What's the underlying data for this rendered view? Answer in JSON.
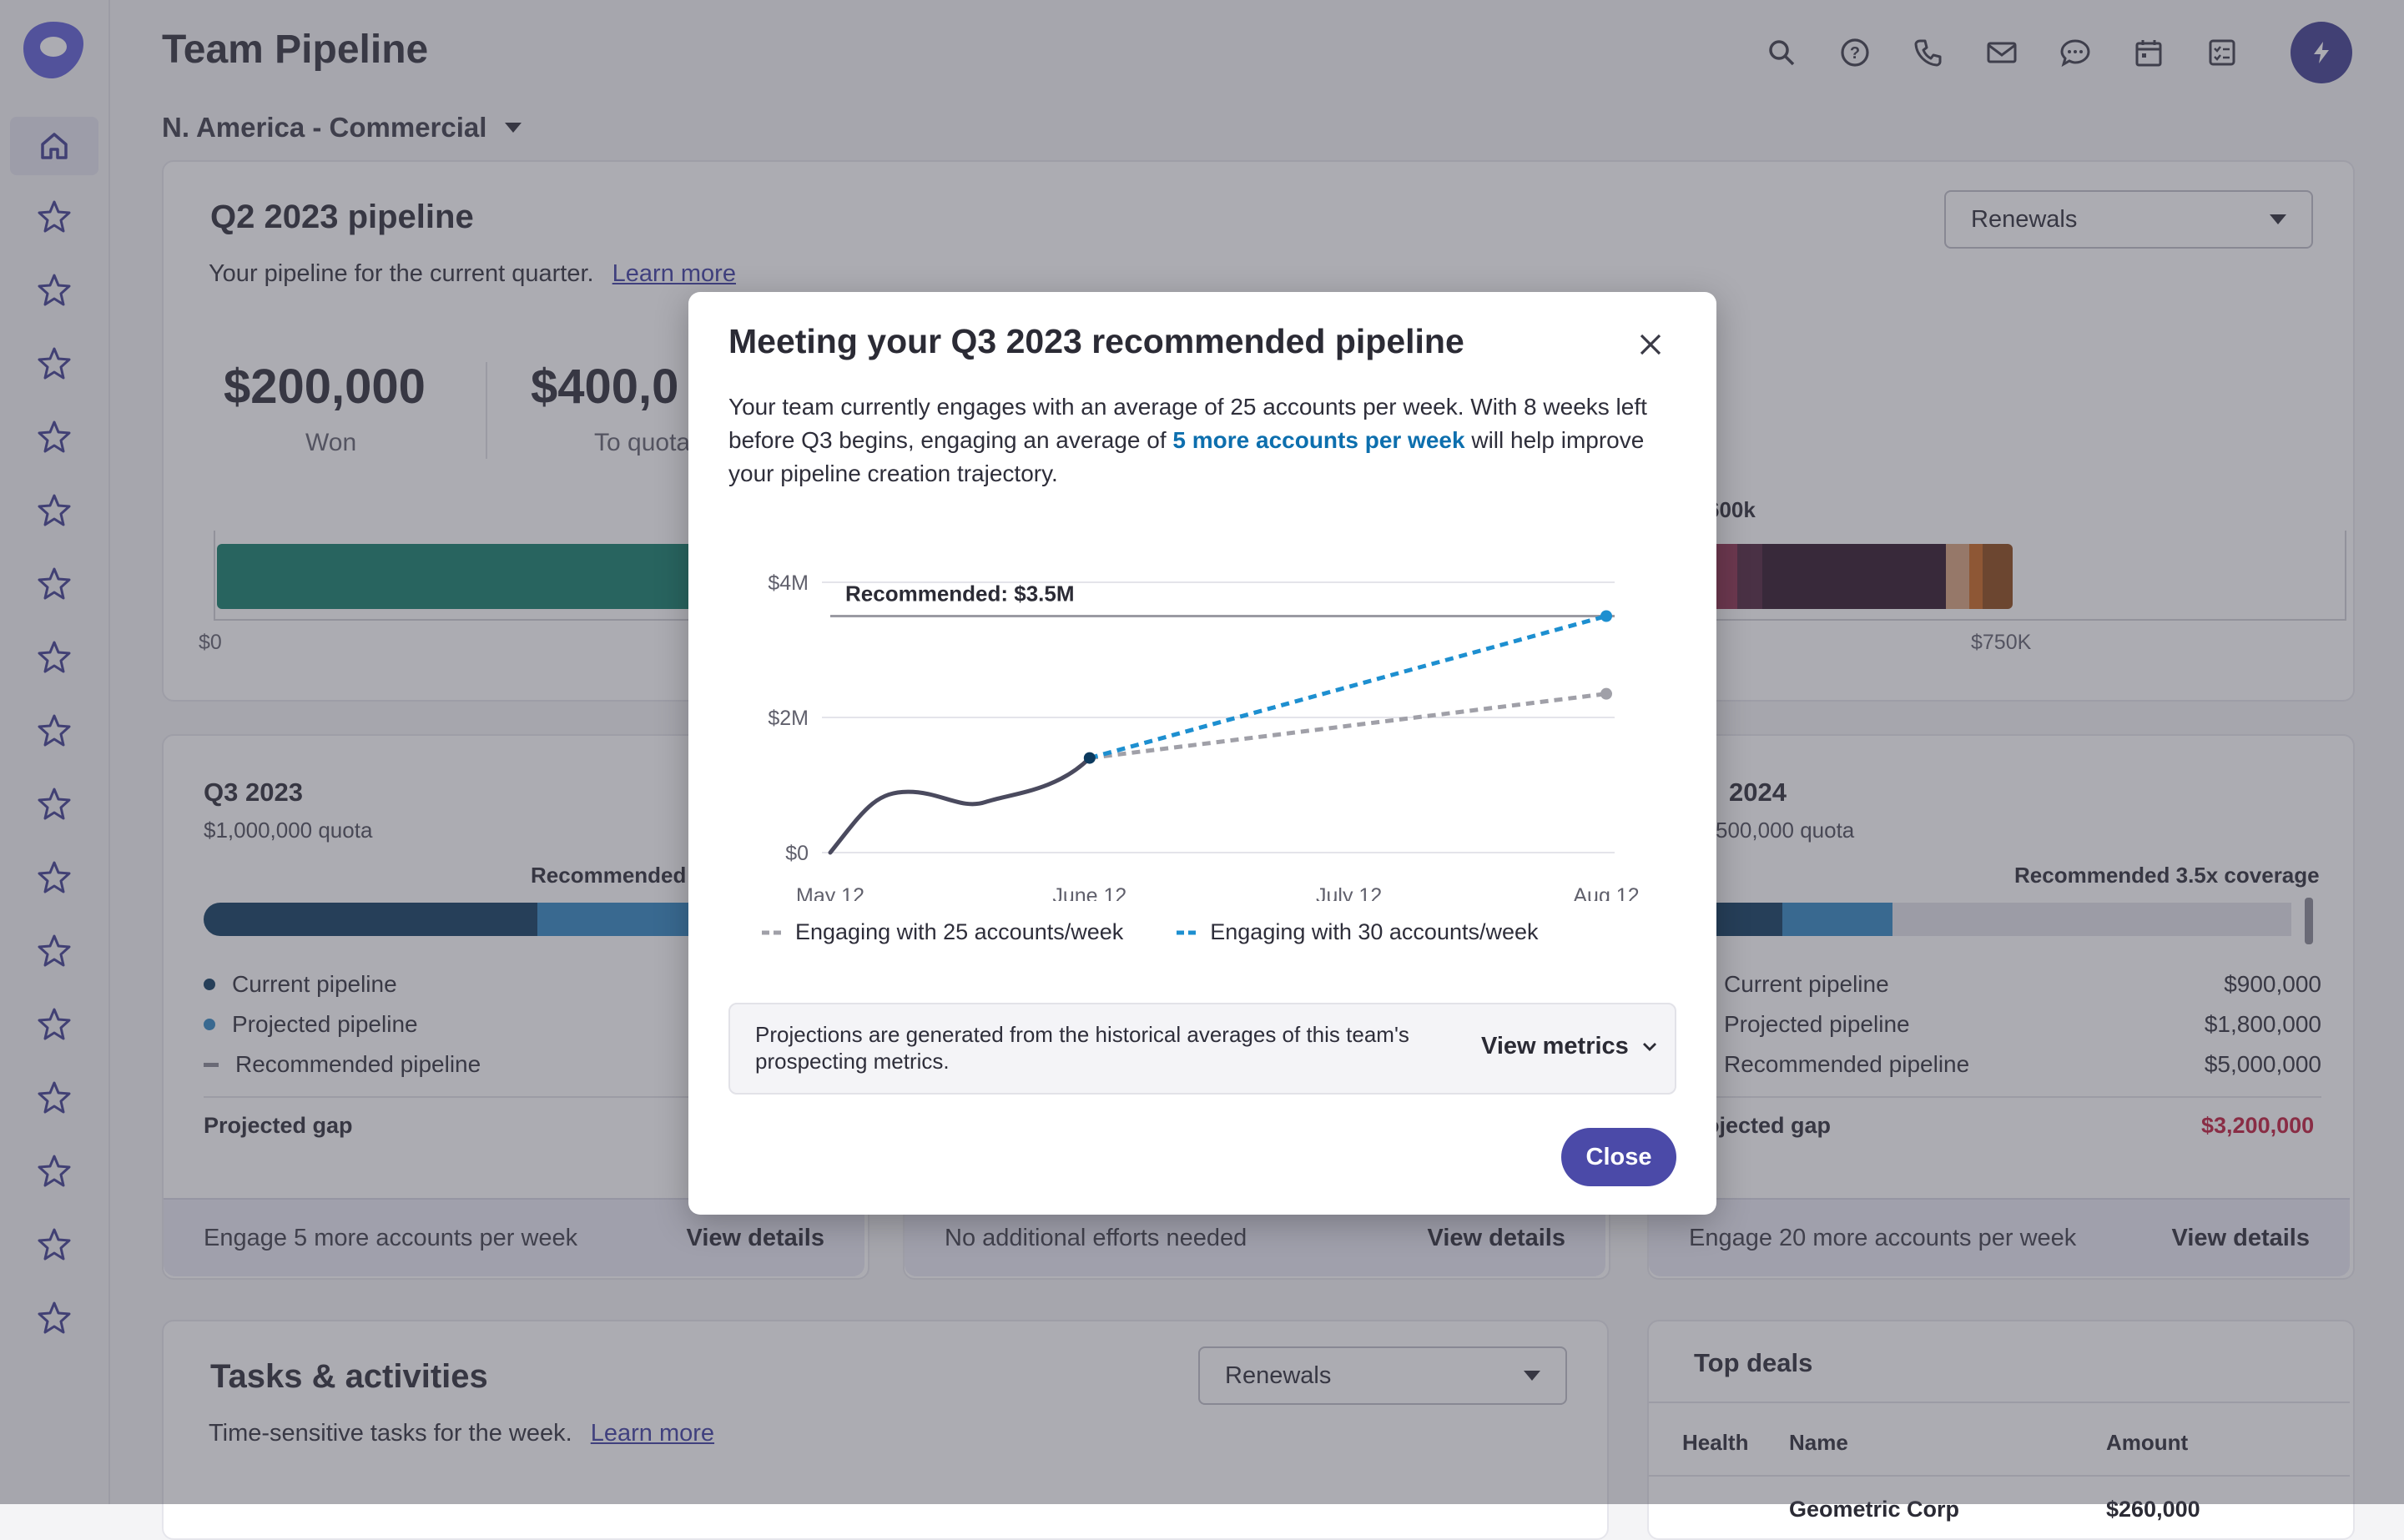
{
  "header": {
    "title": "Team Pipeline",
    "icons": [
      "search-icon",
      "help-icon",
      "phone-icon",
      "mail-icon",
      "chat-icon",
      "calendar-icon",
      "tasks-icon",
      "bolt-icon"
    ]
  },
  "sidebar": {
    "home_icon": "home-icon",
    "item_icon": "star-icon",
    "star_count": 16
  },
  "region_selector": {
    "label": "N. America - Commercial"
  },
  "q2": {
    "title": "Q2 2023 pipeline",
    "subtitle": "Your pipeline for the current quarter.",
    "learn_more": "Learn more",
    "filter": "Renewals",
    "won_value": "$200,000",
    "won_label": "Won",
    "quota_value": "$400,0",
    "quota_label": "To quota",
    "bar_label_right": "600k",
    "axis_start": "$0",
    "axis_750": "$750K"
  },
  "q3_card": {
    "title": "Q3 2023",
    "quota": "$1,000,000 quota",
    "recommended": "Recommended 3",
    "legend": [
      "Current pipeline",
      "Projected pipeline",
      "Recommended pipeline"
    ],
    "gap_label": "Projected gap",
    "footer_text": "Engage 5 more accounts per week",
    "footer_link": "View details"
  },
  "q4_card": {
    "footer_text": "No additional efforts needed",
    "footer_link": "View details"
  },
  "q1_card": {
    "title": "2024",
    "quota": "500,000 quota",
    "recommended": "Recommended 3.5x coverage",
    "legend": [
      "Current pipeline",
      "Projected pipeline",
      "Recommended pipeline"
    ],
    "values": [
      "$900,000",
      "$1,800,000",
      "$5,000,000"
    ],
    "gap_label": "ojected gap",
    "gap_value": "$3,200,000",
    "footer_text": "Engage 20 more accounts per week",
    "footer_link": "View details"
  },
  "tasks": {
    "title": "Tasks & activities",
    "subtitle": "Time-sensitive tasks for the week.",
    "learn_more": "Learn more",
    "filter": "Renewals"
  },
  "top_deals": {
    "title": "Top deals",
    "columns": [
      "Health",
      "Name",
      "Amount"
    ],
    "partial_row": [
      "",
      "Geometric Corp",
      "$260,000"
    ]
  },
  "modal": {
    "title": "Meeting your Q3 2023 recommended pipeline",
    "body_1": "Your team currently engages with an average of 25 accounts per week. With 8 weeks left before Q3 begins, engaging an average of",
    "body_highlight": "5 more accounts per week",
    "body_2": "will help improve your pipeline creation trajectory.",
    "legend_25": "Engaging with 25 accounts/week",
    "legend_30": "Engaging with 30 accounts/week",
    "info_text": "Projections are generated from the historical averages of this team's prospecting metrics.",
    "view_metrics": "View metrics",
    "close_label": "Close"
  },
  "colors": {
    "accent": "#4b4aa8",
    "link": "#3b3ba0",
    "teal": "#0f7d68",
    "navy": "#0c3a5e",
    "blue": "#2e86c1",
    "gap_red": "#c0183a",
    "chart_blue": "#1d8fd0",
    "chart_gray": "#a0a0a8"
  },
  "chart_data": {
    "type": "line",
    "x_ticks": [
      "May 12",
      "June 12",
      "July 12",
      "Aug 12"
    ],
    "y_ticks": [
      "$0",
      "$2M",
      "$4M"
    ],
    "ylim": [
      0,
      4
    ],
    "y_unit": "$M",
    "annotation": "Recommended: $3.5M",
    "recommended_value": 3.5,
    "series": [
      {
        "name": "",
        "points": [
          [
            0,
            0
          ],
          [
            0.3,
            0.9
          ],
          [
            0.6,
            0.75
          ],
          [
            1,
            1.4
          ]
        ]
      },
      {
        "name": "Engaging with 25 accounts/week",
        "points": [
          [
            1,
            1.4
          ],
          [
            3.8,
            2.35
          ]
        ]
      },
      {
        "name": "Engaging with 30 accounts/week",
        "points": [
          [
            1,
            1.4
          ],
          [
            3.8,
            3.5
          ]
        ]
      }
    ]
  }
}
